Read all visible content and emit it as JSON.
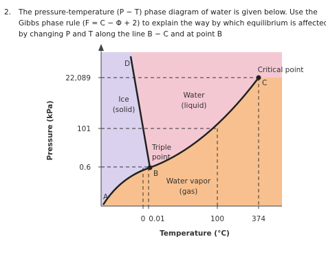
{
  "question": {
    "number": "2.",
    "lines": [
      "The pressure-temperature (P − T) phase diagram of water is given below. Use the",
      "Gibbs phase rule (F = C − Φ + 2) to explain the way by which equilibrium is affected",
      "by changing P and T along the line B − C and at point B"
    ]
  },
  "diagram": {
    "y_axis_label": "Pressure (kPa)",
    "x_axis_label": "Temperature (°C)",
    "y_tick_labels": [
      "22,089",
      "101",
      "0.6"
    ],
    "x_tick_labels": [
      "0",
      "0.01",
      "100",
      "374"
    ],
    "points": [
      "D",
      "A",
      "B",
      "C"
    ],
    "regions": {
      "ice": [
        "Ice",
        "(solid)"
      ],
      "water": [
        "Water",
        "(liquid)"
      ],
      "vapor": [
        "Water vapor",
        "(gas)"
      ]
    },
    "triple_point": [
      "Triple",
      "point"
    ],
    "critical_point": "Critical point"
  }
}
